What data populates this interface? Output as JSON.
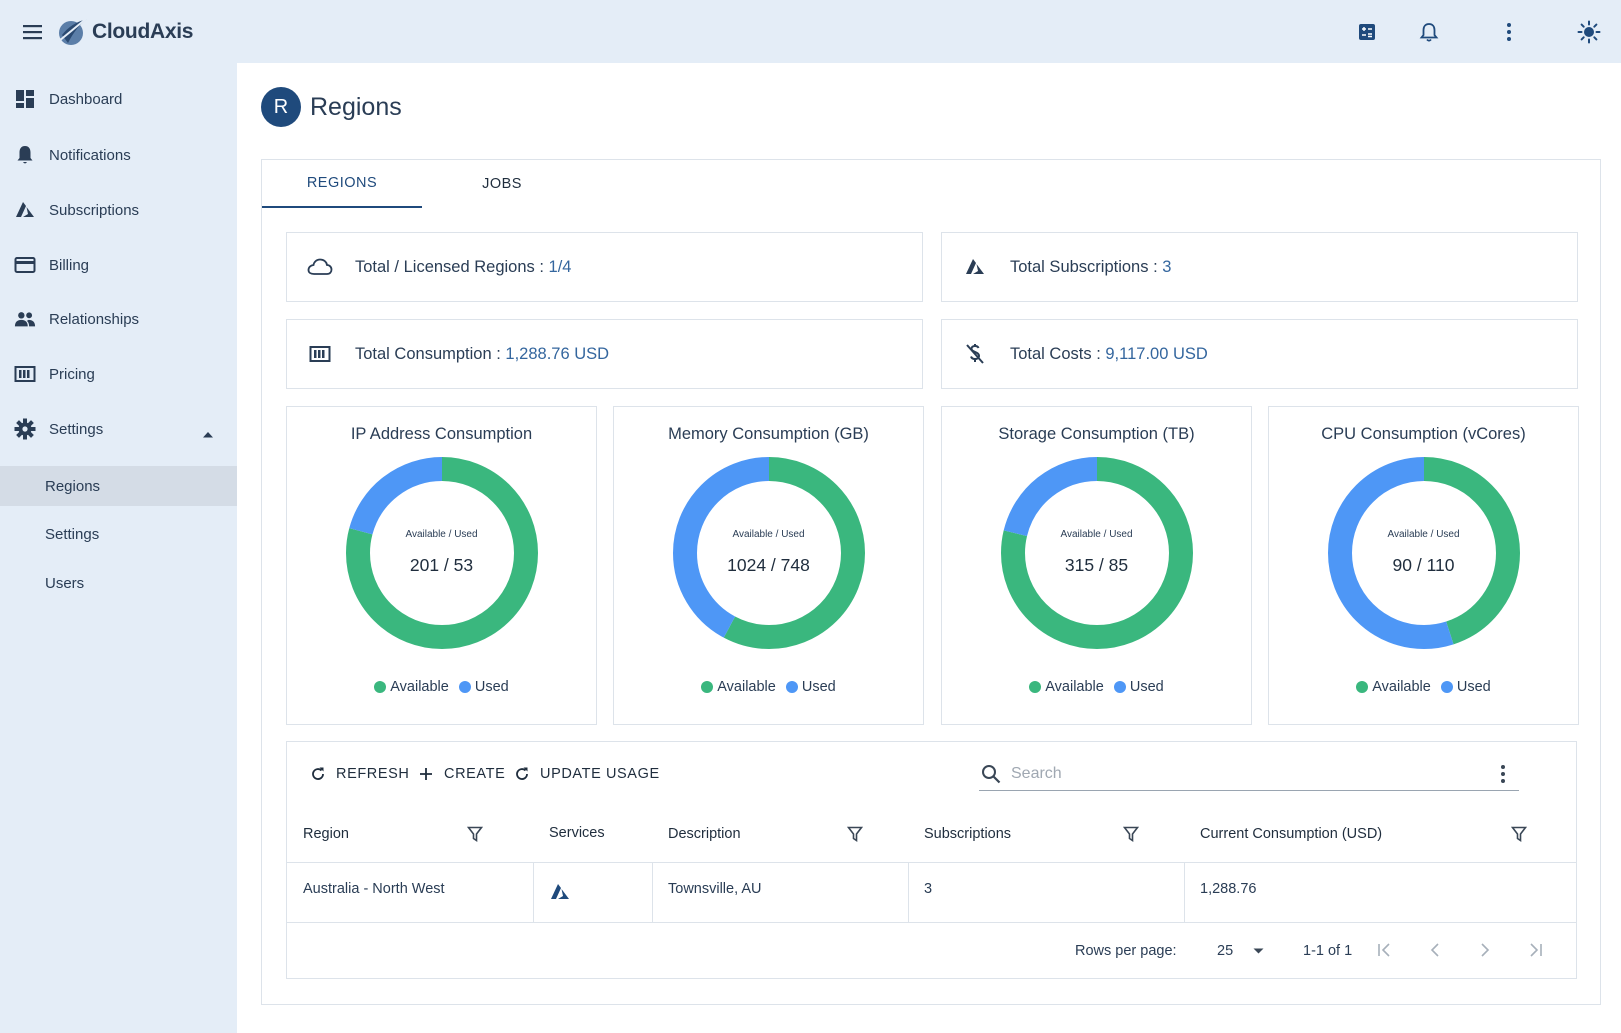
{
  "app": {
    "name": "CloudAxis"
  },
  "sidebar": {
    "items": [
      {
        "label": "Dashboard",
        "icon": "dashboard-icon"
      },
      {
        "label": "Notifications",
        "icon": "bell-icon"
      },
      {
        "label": "Subscriptions",
        "icon": "azure-icon"
      },
      {
        "label": "Billing",
        "icon": "credit-card-icon"
      },
      {
        "label": "Relationships",
        "icon": "people-icon"
      },
      {
        "label": "Pricing",
        "icon": "pricing-icon"
      },
      {
        "label": "Settings",
        "icon": "gear-icon"
      }
    ],
    "sub_items": [
      {
        "label": "Regions",
        "active": true
      },
      {
        "label": "Settings",
        "active": false
      },
      {
        "label": "Users",
        "active": false
      }
    ]
  },
  "header": {
    "avatar_letter": "R",
    "title": "Regions"
  },
  "tabs": [
    {
      "label": "REGIONS",
      "active": true
    },
    {
      "label": "JOBS",
      "active": false
    }
  ],
  "stats": [
    {
      "label": "Total / Licensed Regions : ",
      "value": "1/4",
      "icon": "cloud-icon"
    },
    {
      "label": "Total Subscriptions : ",
      "value": "3",
      "icon": "azure-icon"
    },
    {
      "label": "Total Consumption : ",
      "value": "1,288.76 USD",
      "icon": "meter-icon"
    },
    {
      "label": "Total Costs : ",
      "value": "9,117.00 USD",
      "icon": "no-money-icon"
    }
  ],
  "colors": {
    "available": "#3ab77e",
    "used": "#4e97f6",
    "accent": "#1f4a7c"
  },
  "charts": [
    {
      "title": "IP Address Consumption",
      "caption": "Available / Used",
      "label": "201 / 53",
      "available": 201,
      "used": 53,
      "legend_available": "Available",
      "legend_used": "Used"
    },
    {
      "title": "Memory Consumption (GB)",
      "caption": "Available / Used",
      "label": "1024 / 748",
      "available": 1024,
      "used": 748,
      "legend_available": "Available",
      "legend_used": "Used"
    },
    {
      "title": "Storage Consumption (TB)",
      "caption": "Available / Used",
      "label": "315 / 85",
      "available": 315,
      "used": 85,
      "legend_available": "Available",
      "legend_used": "Used"
    },
    {
      "title": "CPU Consumption (vCores)",
      "caption": "Available / Used",
      "label": "90 / 110",
      "available": 90,
      "used": 110,
      "legend_available": "Available",
      "legend_used": "Used"
    }
  ],
  "toolbar": {
    "refresh": "REFRESH",
    "create": "CREATE",
    "update_usage": "UPDATE USAGE",
    "search_placeholder": "Search"
  },
  "table": {
    "headers": {
      "region": "Region",
      "services": "Services",
      "description": "Description",
      "subscriptions": "Subscriptions",
      "consumption": "Current Consumption (USD)"
    },
    "rows": [
      {
        "region": "Australia - North West",
        "service_icon": "azure-icon",
        "description": "Townsville, AU",
        "subscriptions": "3",
        "consumption": "1,288.76"
      }
    ]
  },
  "pagination": {
    "rows_per_page_label": "Rows per page:",
    "rows_per_page": "25",
    "range": "1-1 of 1"
  }
}
